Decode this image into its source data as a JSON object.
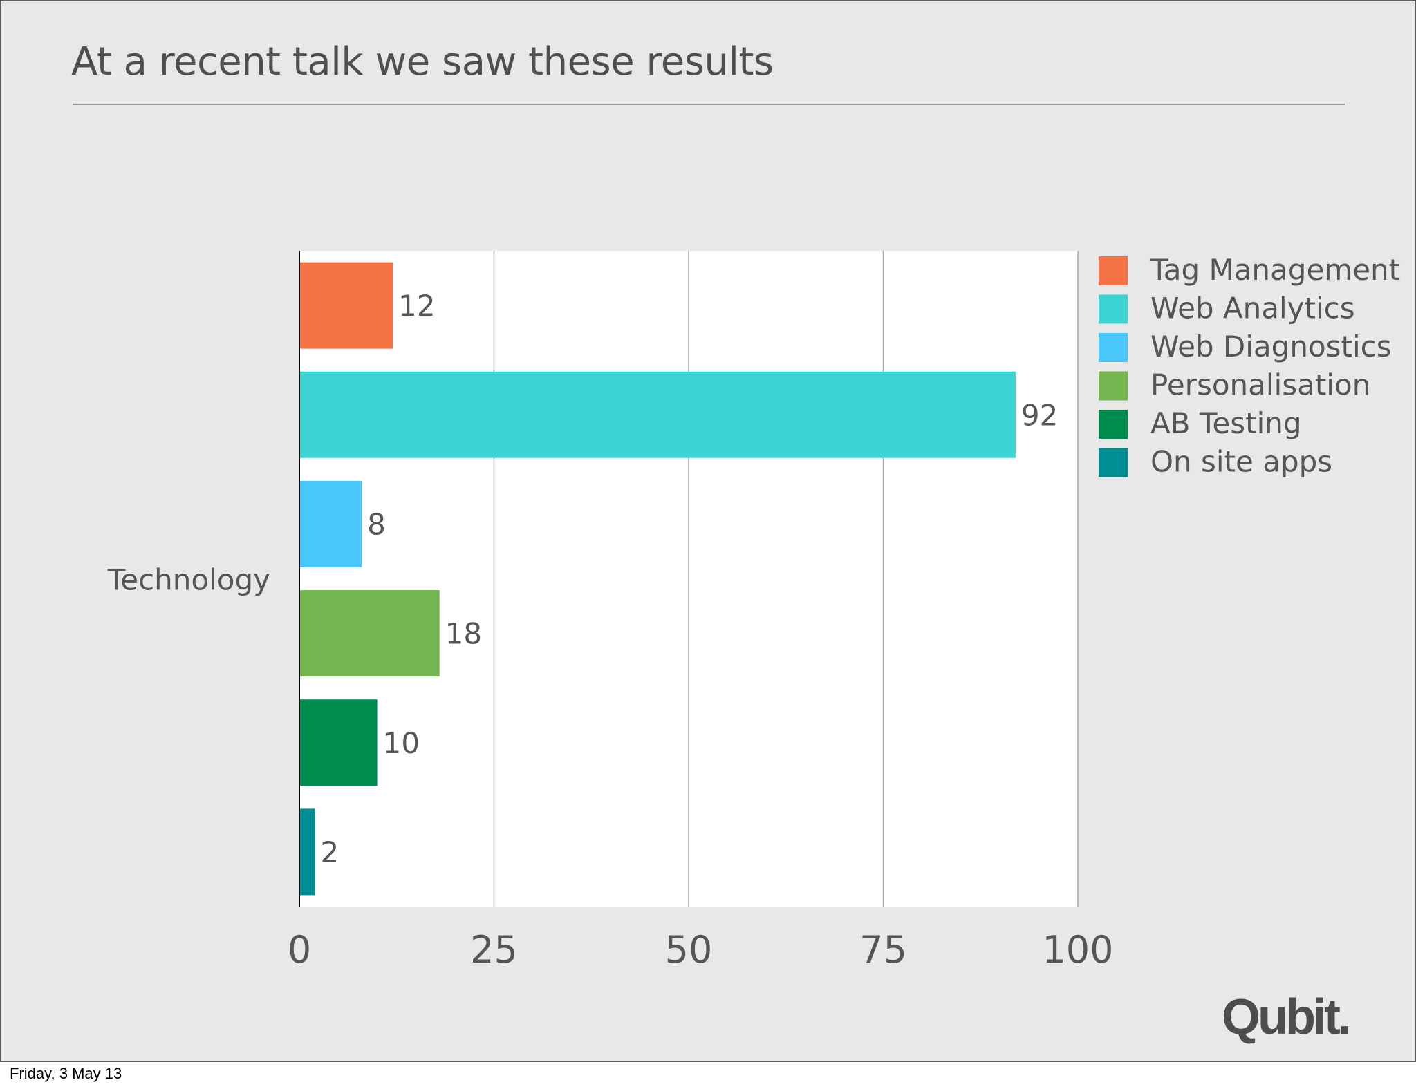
{
  "slide": {
    "title": "At a recent talk we saw these results",
    "logo": "Qubit.",
    "footer_date": "Friday, 3 May 13"
  },
  "colors": {
    "background": "#e8e8e8",
    "plot_area": "#ffffff",
    "text": "#555555"
  },
  "chart_data": {
    "type": "bar",
    "orientation": "horizontal",
    "categories": [
      "Technology"
    ],
    "series": [
      {
        "name": "Tag Management",
        "values": [
          12
        ],
        "color": "#f47448"
      },
      {
        "name": "Web Analytics",
        "values": [
          92
        ],
        "color": "#3dd3d5"
      },
      {
        "name": "Web Diagnostics",
        "values": [
          8
        ],
        "color": "#4ac7fa"
      },
      {
        "name": "Personalisation",
        "values": [
          18
        ],
        "color": "#74b550"
      },
      {
        "name": "AB Testing",
        "values": [
          10
        ],
        "color": "#008c4e"
      },
      {
        "name": "On site apps",
        "values": [
          2
        ],
        "color": "#008e94"
      }
    ],
    "xlim": [
      0,
      100
    ],
    "xticks": [
      "0",
      "25",
      "50",
      "75",
      "100"
    ],
    "xlabel": "",
    "ylabel": "",
    "grid": "vertical",
    "legend": "right",
    "data_labels": [
      "12",
      "92",
      "8",
      "18",
      "10",
      "2"
    ]
  }
}
